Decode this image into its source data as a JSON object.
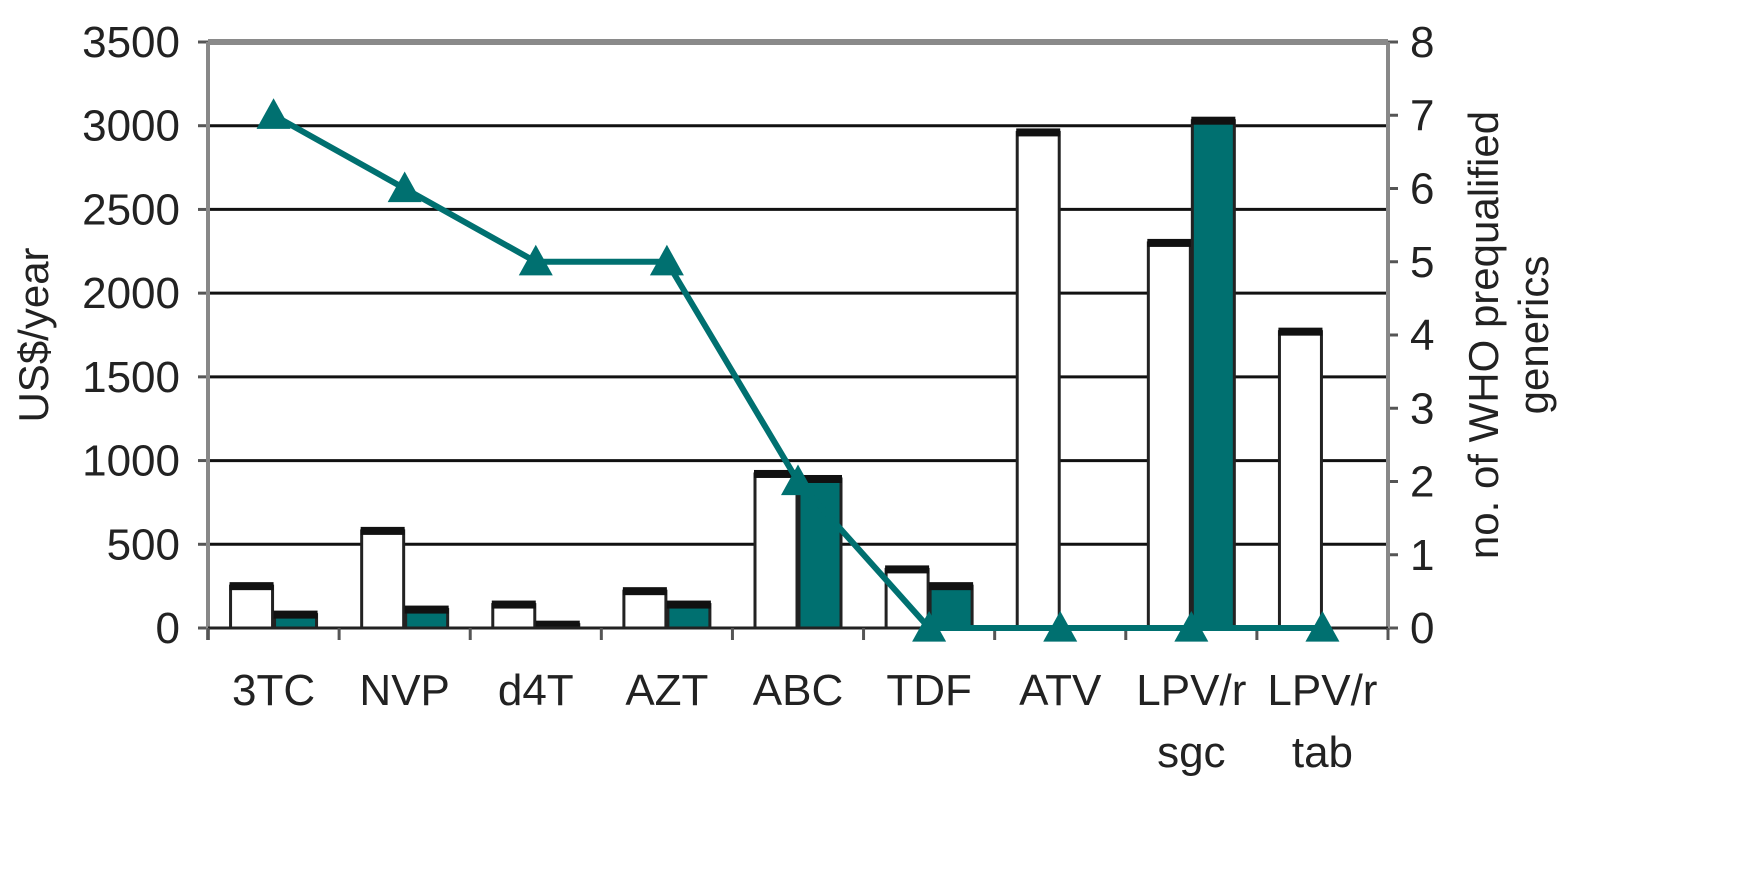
{
  "chart_data": {
    "type": "bar",
    "categories": [
      "3TC",
      "NVP",
      "d4T",
      "AZT",
      "ABC",
      "TDF",
      "ATV",
      "LPV/r sgc",
      "LPV/r tab"
    ],
    "category_lines": [
      [
        "3TC"
      ],
      [
        "NVP"
      ],
      [
        "d4T"
      ],
      [
        "AZT"
      ],
      [
        "ABC"
      ],
      [
        "TDF"
      ],
      [
        "ATV"
      ],
      [
        "LPV/r",
        "sgc"
      ],
      [
        "LPV/r",
        "tab"
      ]
    ],
    "series": [
      {
        "kind": "bar",
        "axis": "left",
        "fill": "#ffffff",
        "values": [
          250,
          580,
          140,
          220,
          920,
          350,
          2960,
          2300,
          1770
        ]
      },
      {
        "kind": "bar",
        "axis": "left",
        "fill": "#007070",
        "values": [
          80,
          110,
          20,
          140,
          890,
          250,
          null,
          3030,
          null
        ]
      },
      {
        "kind": "line",
        "axis": "right",
        "color": "#007070",
        "marker": "triangle",
        "values": [
          7,
          6,
          5,
          5,
          2,
          0,
          0,
          0,
          0
        ]
      }
    ],
    "ylabel": "US$/year",
    "y2label_lines": [
      "no. of WHO prequalified",
      "generics"
    ],
    "ylim": [
      0,
      3500
    ],
    "yticks": [
      0,
      500,
      1000,
      1500,
      2000,
      2500,
      3000,
      3500
    ],
    "y2lim": [
      0,
      8
    ],
    "y2ticks": [
      0,
      1,
      2,
      3,
      4,
      5,
      6,
      7,
      8
    ],
    "grid": true,
    "legend": "none"
  }
}
